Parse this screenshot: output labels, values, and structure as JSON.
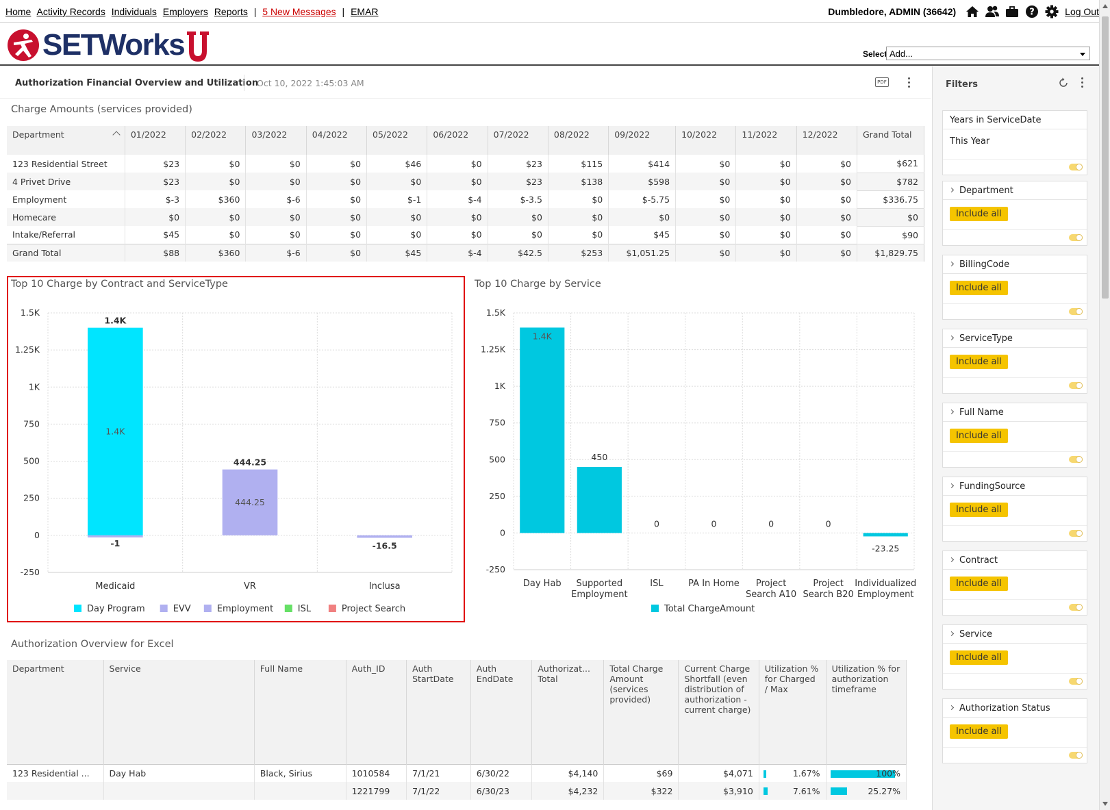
{
  "nav": {
    "links": [
      "Home",
      "Activity Records",
      "Individuals",
      "Employers",
      "Reports"
    ],
    "messages": "5 New Messages",
    "emar": "EMAR",
    "user": "Dumbledore, ADMIN  (36642)",
    "icons": [
      "home-icon",
      "people-icon",
      "briefcase-icon",
      "help-icon",
      "gear-icon"
    ],
    "logout": "Log Out"
  },
  "logo": {
    "text": "SETWorks",
    "colors": {
      "primary": "#1e3066",
      "accent": "#c8102e"
    }
  },
  "select": {
    "label": "Select:",
    "value": "Add..."
  },
  "dashboard": {
    "title": "Authorization Financial Overview and Utilization",
    "date": "Oct 10, 2022 1:45:03 AM",
    "pdf": "PDF"
  },
  "charge_table": {
    "title": "Charge Amounts (services provided)",
    "columns": [
      "Department",
      "01/2022",
      "02/2022",
      "03/2022",
      "04/2022",
      "05/2022",
      "06/2022",
      "07/2022",
      "08/2022",
      "09/2022",
      "10/2022",
      "11/2022",
      "12/2022",
      "Grand Total"
    ],
    "rows": [
      [
        "123 Residential Street",
        "$23",
        "$0",
        "$0",
        "$0",
        "$46",
        "$0",
        "$23",
        "$115",
        "$414",
        "$0",
        "$0",
        "$0",
        "$621"
      ],
      [
        "4 Privet Drive",
        "$23",
        "$0",
        "$0",
        "$0",
        "$0",
        "$0",
        "$23",
        "$138",
        "$598",
        "$0",
        "$0",
        "$0",
        "$782"
      ],
      [
        "Employment",
        "$-3",
        "$360",
        "$-6",
        "$0",
        "$-1",
        "$-4",
        "$-3.5",
        "$0",
        "$-5.75",
        "$0",
        "$0",
        "$0",
        "$336.75"
      ],
      [
        "Homecare",
        "$0",
        "$0",
        "$0",
        "$0",
        "$0",
        "$0",
        "$0",
        "$0",
        "$0",
        "$0",
        "$0",
        "$0",
        "$0"
      ],
      [
        "Intake/Referral",
        "$45",
        "$0",
        "$0",
        "$0",
        "$0",
        "$0",
        "$0",
        "$0",
        "$45",
        "$0",
        "$0",
        "$0",
        "$90"
      ],
      [
        "Grand Total",
        "$88",
        "$360",
        "$-6",
        "$0",
        "$45",
        "$-4",
        "$42.5",
        "$253",
        "$1,051.25",
        "$0",
        "$0",
        "$0",
        "$1,829.75"
      ]
    ]
  },
  "chart_data": [
    {
      "type": "bar",
      "title": "Top 10 Charge by Contract and ServiceType",
      "categories": [
        "Medicaid",
        "VR",
        "Inclusa"
      ],
      "yticks": [
        "1.5K",
        "1.25K",
        "1K",
        "750",
        "500",
        "250",
        "0",
        "-250"
      ],
      "ylim": [
        -250,
        1500
      ],
      "series": [
        {
          "name": "Day Program",
          "color": "#00e5ff",
          "values": [
            1400,
            0,
            0
          ],
          "labels": [
            "1.4K",
            "",
            ""
          ]
        },
        {
          "name": "EVV",
          "color": "#b0b0f0",
          "values": [
            0,
            0,
            -16.5
          ],
          "labels": [
            "",
            "",
            ""
          ]
        },
        {
          "name": "Employment",
          "color": "#b0b0f0",
          "values": [
            -1,
            444.25,
            0
          ],
          "labels": [
            "",
            "444.25",
            ""
          ]
        },
        {
          "name": "ISL",
          "color": "#66e066",
          "values": [
            0,
            0,
            0
          ],
          "labels": [
            "",
            "",
            ""
          ]
        },
        {
          "name": "Project Search",
          "color": "#f08080",
          "values": [
            0,
            0,
            0
          ],
          "labels": [
            "",
            "",
            ""
          ]
        }
      ],
      "totals_top": [
        "1.4K",
        "444.25",
        ""
      ],
      "totals_bottom": [
        "-1",
        "",
        "-16.5"
      ],
      "grid": true,
      "legend": "bottom"
    },
    {
      "type": "bar",
      "title": "Top 10 Charge by Service",
      "categories": [
        [
          "Day Hab"
        ],
        [
          "Supported",
          "Employment"
        ],
        [
          "ISL"
        ],
        [
          "PA In Home"
        ],
        [
          "Project",
          "Search A10"
        ],
        [
          "Project",
          "Search B20"
        ],
        [
          "Individualized",
          "Employment"
        ]
      ],
      "yticks": [
        "1.5K",
        "1.25K",
        "1K",
        "750",
        "500",
        "250",
        "0",
        "-250"
      ],
      "ylim": [
        -250,
        1500
      ],
      "series": [
        {
          "name": "Total ChargeAmount",
          "color": "#00c8e0",
          "values": [
            1400,
            450,
            0,
            0,
            0,
            0,
            -23.25
          ],
          "labels": [
            "1.4K",
            "450",
            "0",
            "0",
            "0",
            "0",
            "-23.25"
          ]
        }
      ],
      "grid": true,
      "legend": "bottom"
    }
  ],
  "overview_table": {
    "title": "Authorization Overview for Excel",
    "columns": [
      "Department",
      "Service",
      "Full Name",
      "Auth_ID",
      "Auth StartDate",
      "Auth EndDate",
      "Authorizat... Total",
      "Total Charge Amount (services provided)",
      "Current Charge Shortfall (even distribution of authorization - current charge)",
      "Utilization % for Charged / Max",
      "Utilization % for authorization timeframe"
    ],
    "rows": [
      {
        "cells": [
          "123 Residential ...",
          "Day Hab",
          "Black, Sirius",
          "1010584",
          "7/1/21",
          "6/30/22",
          "$4,140",
          "$69",
          "$4,071",
          "1.67%",
          "100%"
        ],
        "util1": 0.0167,
        "util2": 1.0
      },
      {
        "cells": [
          "",
          "",
          "",
          "1221799",
          "7/1/22",
          "6/30/23",
          "$4,232",
          "$322",
          "$3,910",
          "7.61%",
          "25.27%"
        ],
        "util1": 0.0761,
        "util2": 0.2527
      }
    ]
  },
  "filters": {
    "title": "Filters",
    "first": {
      "label": "Years in ServiceDate",
      "value": "This Year"
    },
    "items": [
      "Department",
      "BillingCode",
      "ServiceType",
      "Full Name",
      "FundingSource",
      "Contract",
      "Service",
      "Authorization Status"
    ],
    "include_label": "Include all",
    "accent": "#f5c400"
  }
}
